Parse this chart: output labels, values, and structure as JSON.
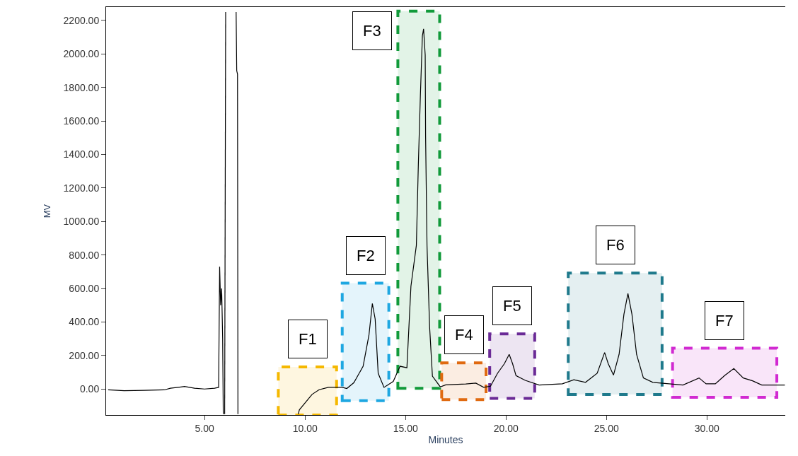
{
  "chart_data": {
    "type": "line",
    "xlabel": "Minutes",
    "ylabel": "MV",
    "x": [
      0.2,
      1,
      2,
      3,
      3.3,
      4,
      4.5,
      5,
      5.5,
      5.7,
      5.75,
      5.8,
      5.85,
      5.9,
      5.93,
      5.97,
      6.0,
      6.05,
      6.55,
      6.57,
      6.6,
      6.64,
      6.66,
      6.7,
      9.6,
      9.66,
      9.72,
      10.35,
      10.7,
      11.16,
      11.85,
      12.08,
      12.43,
      12.89,
      13.18,
      13.35,
      13.49,
      13.64,
      13.93,
      14.39,
      14.73,
      15.07,
      15.27,
      15.54,
      15.64,
      15.74,
      15.84,
      15.9,
      15.98,
      16.0,
      16.07,
      16.2,
      16.34,
      16.73,
      17,
      18,
      18.5,
      18.89,
      19.23,
      19.58,
      19.92,
      20.16,
      20.33,
      20.5,
      20.96,
      21.65,
      22.81,
      23.38,
      23.96,
      24.54,
      24.91,
      25.09,
      25.35,
      25.63,
      25.87,
      26.07,
      26.27,
      26.5,
      26.84,
      27.31,
      28.81,
      29.61,
      29.96,
      30.42,
      30.88,
      31.34,
      31.81,
      32.27,
      32.73,
      33.88
    ],
    "values": [
      -5,
      -10,
      -8,
      -5,
      5,
      15,
      5,
      0,
      5,
      10,
      730,
      500,
      600,
      300,
      -150,
      null,
      -150,
      2250,
      null,
      2250,
      1900,
      1880,
      -150,
      null,
      null,
      -150,
      -124,
      -32,
      -4,
      10,
      10,
      3,
      38,
      136,
      321,
      510,
      418,
      94,
      10,
      45,
      136,
      127,
      613,
      857,
      1344,
      1750,
      2108,
      2150,
      1994,
      1508,
      857,
      370,
      77,
      13,
      25,
      30,
      35,
      10,
      17,
      94,
      151,
      207,
      151,
      80,
      52,
      24,
      31,
      55,
      40,
      94,
      218,
      151,
      83,
      207,
      446,
      570,
      446,
      207,
      66,
      40,
      24,
      66,
      31,
      31,
      80,
      122,
      66,
      49,
      24,
      24
    ],
    "color": "#000000",
    "xlim": [
      0.1,
      33.9
    ],
    "ylim": [
      -155,
      2280
    ],
    "xticks": [
      {
        "value": 5,
        "label": "5.00"
      },
      {
        "value": 10,
        "label": "10.00"
      },
      {
        "value": 15,
        "label": "15.00"
      },
      {
        "value": 20,
        "label": "20.00"
      },
      {
        "value": 25,
        "label": "25.00"
      },
      {
        "value": 30,
        "label": "30.00"
      }
    ],
    "yticks": [
      {
        "value": 0,
        "label": "0.00"
      },
      {
        "value": 200,
        "label": "200.00"
      },
      {
        "value": 400,
        "label": "400.00"
      },
      {
        "value": 600,
        "label": "600.00"
      },
      {
        "value": 800,
        "label": "800.00"
      },
      {
        "value": 1000,
        "label": "1000.00"
      },
      {
        "value": 1200,
        "label": "1200.00"
      },
      {
        "value": 1400,
        "label": "1400.00"
      },
      {
        "value": 1600,
        "label": "1600.00"
      },
      {
        "value": 1800,
        "label": "1800.00"
      },
      {
        "value": 2000,
        "label": "2000.00"
      },
      {
        "value": 2200,
        "label": "2200.00"
      }
    ],
    "bands": [
      {
        "axis": "x",
        "from": 8.67,
        "to": 11.57,
        "label": "F1",
        "color": "#f5b800"
      },
      {
        "axis": "x",
        "from": 11.85,
        "to": 14.17,
        "label": "F2",
        "color": "#1ea7e1"
      },
      {
        "axis": "x",
        "from": 14.62,
        "to": 16.7,
        "label": "F3",
        "color": "#119a3a"
      },
      {
        "axis": "x",
        "from": 16.8,
        "to": 19.01,
        "label": "F4",
        "color": "#e06a10"
      },
      {
        "axis": "x",
        "from": 19.19,
        "to": 21.43,
        "label": "F5",
        "color": "#6a2a96"
      },
      {
        "axis": "x",
        "from": 23.1,
        "to": 27.77,
        "label": "F6",
        "color": "#1f7a8c"
      },
      {
        "axis": "x",
        "from": 28.29,
        "to": 33.48,
        "label": "F7",
        "color": "#d12ad1"
      }
    ],
    "grid": false,
    "legend": false
  }
}
